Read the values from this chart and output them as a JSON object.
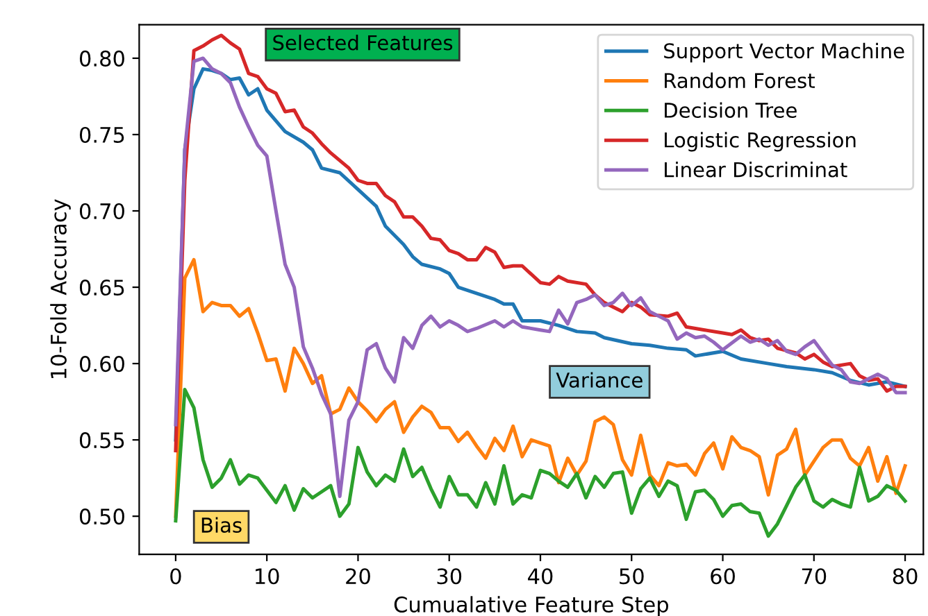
{
  "chart_data": {
    "type": "line",
    "xlabel": "Cumualative Feature Step",
    "ylabel": "10-Fold Accuracy",
    "xlim": [
      -4,
      82
    ],
    "ylim": [
      0.475,
      0.822
    ],
    "xticks": [
      0,
      10,
      20,
      30,
      40,
      50,
      60,
      70,
      80
    ],
    "yticks": [
      {
        "value": 0.5,
        "label": "0.50"
      },
      0.55,
      {
        "value": 0.6,
        "label": "0.60"
      },
      0.65,
      {
        "value": 0.7,
        "label": "0.70"
      },
      0.75,
      {
        "value": 0.8,
        "label": "0.80"
      }
    ],
    "grid": false,
    "legend": "top right",
    "annotations": [
      "Selected Features",
      "Variance",
      "Bias"
    ],
    "series": [
      {
        "name": "Support Vector Machine",
        "color": "#1f77b4",
        "x": [
          0,
          1,
          2,
          3,
          4,
          5,
          6,
          7,
          8,
          9,
          10,
          12,
          14,
          15,
          16,
          18,
          20,
          22,
          23,
          24,
          25,
          26,
          27,
          29,
          30,
          31,
          33,
          35,
          36,
          37,
          38,
          40,
          42,
          44,
          46,
          47,
          50,
          52,
          54,
          56,
          57,
          60,
          62,
          65,
          67,
          70,
          72,
          74,
          76,
          78,
          80
        ],
        "values": [
          0.55,
          0.74,
          0.78,
          0.793,
          0.792,
          0.79,
          0.786,
          0.787,
          0.776,
          0.78,
          0.766,
          0.752,
          0.745,
          0.74,
          0.728,
          0.725,
          0.714,
          0.703,
          0.69,
          0.684,
          0.678,
          0.67,
          0.665,
          0.662,
          0.659,
          0.65,
          0.646,
          0.642,
          0.639,
          0.639,
          0.628,
          0.628,
          0.625,
          0.621,
          0.62,
          0.617,
          0.613,
          0.612,
          0.61,
          0.609,
          0.605,
          0.608,
          0.603,
          0.6,
          0.598,
          0.596,
          0.594,
          0.589,
          0.586,
          0.588,
          0.585
        ]
      },
      {
        "name": "Random Forest",
        "color": "#ff7f0e",
        "x": [
          0,
          1,
          2,
          3,
          4,
          5,
          6,
          7,
          8,
          9,
          10,
          11,
          12,
          13,
          14,
          15,
          16,
          17,
          18,
          19,
          20,
          21,
          22,
          23,
          24,
          25,
          26,
          27,
          28,
          29,
          30,
          31,
          32,
          33,
          34,
          35,
          36,
          37,
          38,
          39,
          40,
          41,
          42,
          43,
          44,
          45,
          46,
          47,
          48,
          49,
          50,
          51,
          52,
          53,
          54,
          55,
          56,
          57,
          58,
          59,
          60,
          61,
          62,
          63,
          64,
          65,
          66,
          67,
          68,
          69,
          70,
          71,
          72,
          73,
          74,
          75,
          76,
          77,
          78,
          79,
          80
        ],
        "values": [
          0.5,
          0.656,
          0.668,
          0.634,
          0.64,
          0.638,
          0.638,
          0.631,
          0.636,
          0.62,
          0.602,
          0.603,
          0.582,
          0.61,
          0.6,
          0.587,
          0.592,
          0.567,
          0.57,
          0.584,
          0.575,
          0.569,
          0.562,
          0.57,
          0.575,
          0.555,
          0.565,
          0.572,
          0.568,
          0.558,
          0.558,
          0.549,
          0.555,
          0.546,
          0.538,
          0.551,
          0.543,
          0.559,
          0.539,
          0.55,
          0.548,
          0.546,
          0.522,
          0.538,
          0.527,
          0.536,
          0.562,
          0.565,
          0.56,
          0.537,
          0.527,
          0.553,
          0.527,
          0.52,
          0.535,
          0.533,
          0.534,
          0.527,
          0.541,
          0.548,
          0.531,
          0.552,
          0.545,
          0.543,
          0.539,
          0.514,
          0.54,
          0.544,
          0.557,
          0.527,
          0.536,
          0.545,
          0.55,
          0.55,
          0.538,
          0.533,
          0.545,
          0.523,
          0.539,
          0.515,
          0.533
        ]
      },
      {
        "name": "Decision Tree",
        "color": "#2ca02c",
        "x": [
          0,
          1,
          2,
          3,
          4,
          5,
          6,
          7,
          8,
          9,
          10,
          11,
          12,
          13,
          14,
          15,
          16,
          17,
          18,
          19,
          20,
          21,
          22,
          23,
          24,
          25,
          26,
          27,
          28,
          29,
          30,
          31,
          32,
          33,
          34,
          35,
          36,
          37,
          38,
          39,
          40,
          41,
          42,
          43,
          44,
          45,
          46,
          47,
          48,
          49,
          50,
          51,
          52,
          53,
          54,
          55,
          56,
          57,
          58,
          59,
          60,
          61,
          62,
          63,
          64,
          65,
          66,
          67,
          68,
          69,
          70,
          71,
          72,
          73,
          74,
          75,
          76,
          77,
          78,
          79,
          80
        ],
        "values": [
          0.497,
          0.583,
          0.571,
          0.537,
          0.519,
          0.525,
          0.537,
          0.521,
          0.527,
          0.525,
          0.517,
          0.509,
          0.52,
          0.504,
          0.518,
          0.512,
          0.516,
          0.52,
          0.5,
          0.508,
          0.545,
          0.529,
          0.52,
          0.527,
          0.523,
          0.544,
          0.526,
          0.532,
          0.518,
          0.506,
          0.526,
          0.514,
          0.514,
          0.506,
          0.522,
          0.508,
          0.533,
          0.508,
          0.514,
          0.512,
          0.53,
          0.528,
          0.523,
          0.519,
          0.528,
          0.512,
          0.526,
          0.519,
          0.528,
          0.529,
          0.502,
          0.518,
          0.525,
          0.513,
          0.523,
          0.52,
          0.498,
          0.516,
          0.517,
          0.511,
          0.5,
          0.507,
          0.508,
          0.503,
          0.502,
          0.487,
          0.495,
          0.507,
          0.519,
          0.527,
          0.51,
          0.506,
          0.511,
          0.508,
          0.506,
          0.532,
          0.51,
          0.513,
          0.52,
          0.517,
          0.51
        ]
      },
      {
        "name": "Logistic Regression",
        "color": "#d62728",
        "x": [
          0,
          1,
          2,
          3,
          4,
          5,
          6,
          7,
          8,
          9,
          10,
          11,
          12,
          13,
          14,
          15,
          16,
          17,
          18,
          19,
          20,
          21,
          22,
          23,
          24,
          25,
          26,
          27,
          28,
          29,
          30,
          31,
          32,
          33,
          34,
          35,
          36,
          37,
          38,
          40,
          41,
          42,
          43,
          45,
          46,
          47,
          48,
          49,
          50,
          51,
          52,
          54,
          55,
          56,
          58,
          60,
          61,
          62,
          63,
          64,
          65,
          66,
          68,
          69,
          70,
          71,
          72,
          74,
          75,
          76,
          77,
          78,
          79,
          80
        ],
        "values": [
          0.543,
          0.72,
          0.805,
          0.808,
          0.812,
          0.815,
          0.81,
          0.806,
          0.79,
          0.788,
          0.78,
          0.777,
          0.765,
          0.766,
          0.755,
          0.751,
          0.744,
          0.738,
          0.733,
          0.728,
          0.72,
          0.718,
          0.718,
          0.71,
          0.706,
          0.696,
          0.696,
          0.69,
          0.682,
          0.681,
          0.674,
          0.672,
          0.668,
          0.668,
          0.676,
          0.673,
          0.663,
          0.664,
          0.664,
          0.653,
          0.652,
          0.657,
          0.654,
          0.652,
          0.645,
          0.64,
          0.637,
          0.634,
          0.64,
          0.637,
          0.632,
          0.631,
          0.633,
          0.624,
          0.622,
          0.62,
          0.619,
          0.622,
          0.617,
          0.615,
          0.616,
          0.61,
          0.607,
          0.603,
          0.606,
          0.601,
          0.598,
          0.6,
          0.592,
          0.589,
          0.59,
          0.582,
          0.585,
          0.585
        ]
      },
      {
        "name": "Linear Discriminat",
        "color": "#9467bd",
        "x": [
          0,
          1,
          2,
          3,
          4,
          5,
          6,
          7,
          8,
          9,
          10,
          11,
          12,
          13,
          14,
          15,
          16,
          17,
          18,
          19,
          20,
          21,
          22,
          23,
          24,
          25,
          26,
          27,
          28,
          29,
          30,
          31,
          32,
          33,
          35,
          36,
          37,
          38,
          40,
          41,
          42,
          43,
          44,
          45,
          46,
          47,
          48,
          49,
          50,
          51,
          52,
          53,
          54,
          55,
          56,
          57,
          58,
          59,
          60,
          62,
          63,
          64,
          65,
          66,
          67,
          68,
          69,
          70,
          71,
          72,
          73,
          74,
          75,
          76,
          77,
          78,
          79,
          80
        ],
        "values": [
          0.56,
          0.74,
          0.798,
          0.8,
          0.793,
          0.79,
          0.784,
          0.768,
          0.755,
          0.743,
          0.736,
          0.7,
          0.665,
          0.65,
          0.611,
          0.597,
          0.58,
          0.567,
          0.513,
          0.563,
          0.575,
          0.609,
          0.613,
          0.597,
          0.588,
          0.617,
          0.61,
          0.625,
          0.631,
          0.624,
          0.628,
          0.625,
          0.621,
          0.623,
          0.628,
          0.624,
          0.628,
          0.624,
          0.622,
          0.621,
          0.635,
          0.626,
          0.64,
          0.642,
          0.645,
          0.638,
          0.64,
          0.646,
          0.638,
          0.643,
          0.634,
          0.631,
          0.628,
          0.616,
          0.62,
          0.617,
          0.618,
          0.614,
          0.609,
          0.618,
          0.614,
          0.616,
          0.612,
          0.615,
          0.608,
          0.606,
          0.611,
          0.615,
          0.607,
          0.599,
          0.596,
          0.588,
          0.587,
          0.59,
          0.593,
          0.59,
          0.581,
          0.581
        ]
      }
    ]
  }
}
